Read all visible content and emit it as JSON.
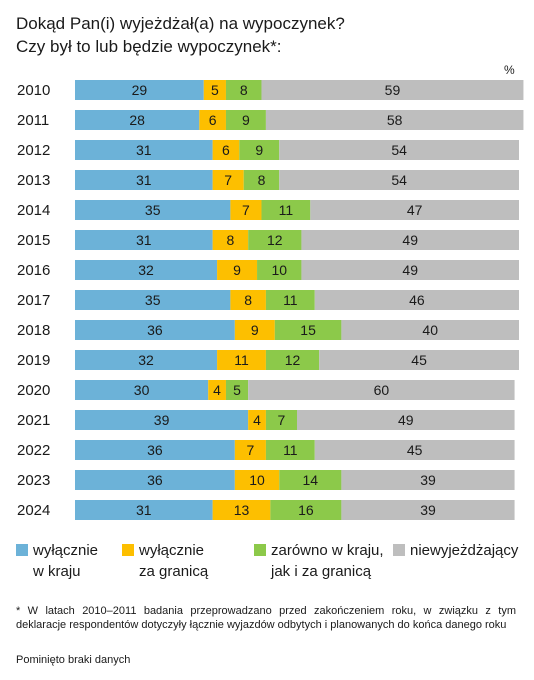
{
  "title_line1": "Dokąd Pan(i) wyjeżdżał(a) na wypoczynek?",
  "title_line2": "Czy był to lub będzie wypoczynek*:",
  "unit": "%",
  "legend": [
    {
      "line1": "wyłącznie",
      "line2": "w kraju",
      "color": "#6cb2d8"
    },
    {
      "line1": "wyłącznie",
      "line2": "za granicą",
      "color": "#fdbf00"
    },
    {
      "line1": "zarówno w kraju,",
      "line2": "jak i za granicą",
      "color": "#8cc94a"
    },
    {
      "line1": "niewyjeżdżający",
      "line2": "",
      "color": "#bebebe"
    }
  ],
  "footnote": "* W latach 2010–2011 badania przeprowadzano przed zakończeniem roku, w związku z tym deklaracje respondentów dotyczyły łącznie wyjazdów odbytych i planowanych do końca danego roku",
  "note": "Pominięto braki danych",
  "chart_data": {
    "type": "bar",
    "orientation": "horizontal",
    "stacked": true,
    "categories": [
      "2010",
      "2011",
      "2012",
      "2013",
      "2014",
      "2015",
      "2016",
      "2017",
      "2018",
      "2019",
      "2020",
      "2021",
      "2022",
      "2023",
      "2024"
    ],
    "series": [
      {
        "name": "wyłącznie w kraju",
        "color": "#6cb2d8",
        "values": [
          29,
          28,
          31,
          31,
          35,
          31,
          32,
          35,
          36,
          32,
          30,
          39,
          36,
          36,
          31
        ]
      },
      {
        "name": "wyłącznie za granicą",
        "color": "#fdbf00",
        "values": [
          5,
          6,
          6,
          7,
          7,
          8,
          9,
          8,
          9,
          11,
          4,
          4,
          7,
          10,
          13
        ]
      },
      {
        "name": "zarówno w kraju, jak i za granicą",
        "color": "#8cc94a",
        "values": [
          8,
          9,
          9,
          8,
          11,
          12,
          10,
          11,
          15,
          12,
          5,
          7,
          11,
          14,
          16
        ]
      },
      {
        "name": "niewyjeżdżający",
        "color": "#bebebe",
        "values": [
          59,
          58,
          54,
          54,
          47,
          49,
          49,
          46,
          40,
          45,
          60,
          49,
          45,
          39,
          39
        ]
      }
    ],
    "xlim": [
      0,
      100
    ],
    "ylabel": "",
    "xlabel": ""
  }
}
